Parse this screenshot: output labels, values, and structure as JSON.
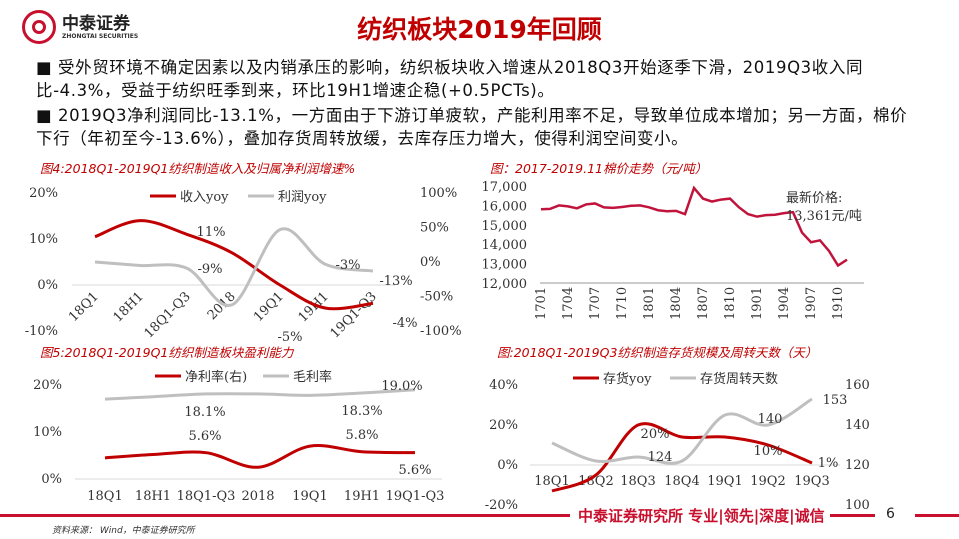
{
  "header": {
    "logo_cn": "中泰证券",
    "logo_en": "ZHONGTAI SECURITIES",
    "title": "纺织板块2019年回顾"
  },
  "bullets": [
    {
      "marker": "■",
      "text": "受外贸环境不确定因素以及内销承压的影响，纺织板块收入增速从2018Q3开始逐季下滑，2019Q3收入同比-4.3%，受益于纺织旺季到来，环比19H1增速企稳(+0.5PCTs)。"
    },
    {
      "marker": "■",
      "text": "2019Q3净利润同比-13.1%，一方面由于下游订单疲软，产能利用率不足，导致单位成本增加；另一方面，棉价下行（年初至今-13.6%），叠加存货周转放缓，去库存压力增大，使得利润空间变小。"
    }
  ],
  "chart_data": [
    {
      "type": "line",
      "title": "图4:2018Q1-2019Q1纺织制造收入及归属净利润增速%",
      "categories": [
        "18Q1",
        "18H1",
        "18Q1-Q3",
        "2018",
        "19Q1",
        "19H1",
        "19Q1-Q3"
      ],
      "y_ticks": [
        "20%",
        "10%",
        "0%",
        "-10%"
      ],
      "y2_ticks": [
        "100%",
        "50%",
        "0%",
        "-50%",
        "-100%"
      ],
      "ylim": [
        -10,
        20
      ],
      "y2lim": [
        -100,
        100
      ],
      "legend": "top",
      "series": [
        {
          "name": "收入yoy",
          "axis": "left",
          "color": "#c00000",
          "values": [
            10.5,
            14,
            11,
            7,
            0,
            -5,
            -4
          ],
          "labels": {
            "2": "11%",
            "5": "-5%",
            "6": "-4%"
          }
        },
        {
          "name": "利润yoy",
          "axis": "right",
          "color": "#bfbfbf",
          "values": [
            0,
            -5,
            -9,
            -62,
            47,
            -3,
            -13
          ],
          "labels": {
            "2": "-9%",
            "5": "-3%",
            "6": "-13%"
          }
        }
      ]
    },
    {
      "type": "line",
      "title": "图：2017-2019.11棉价走势（元/吨）",
      "x_ticks": [
        "1701",
        "1704",
        "1707",
        "1710",
        "1801",
        "1804",
        "1807",
        "1810",
        "1901",
        "1904",
        "1907",
        "1910"
      ],
      "y_ticks": [
        "17,000",
        "16,000",
        "15,000",
        "14,000",
        "13,000",
        "12,000"
      ],
      "ylim": [
        12000,
        17000
      ],
      "annotation": [
        "最新价格:",
        "13,361元/吨"
      ],
      "series": [
        {
          "color": "#c0143c",
          "x": [
            "1701",
            "1702",
            "1703",
            "1704",
            "1705",
            "1706",
            "1707",
            "1708",
            "1709",
            "1710",
            "1711",
            "1712",
            "1801",
            "1802",
            "1803",
            "1804",
            "1805",
            "1806",
            "1807",
            "1808",
            "1809",
            "1810",
            "1811",
            "1812",
            "1901",
            "1902",
            "1903",
            "1904",
            "1905",
            "1906",
            "1907",
            "1908",
            "1909",
            "1910",
            "1911"
          ],
          "values": [
            15800,
            15820,
            16000,
            15950,
            15850,
            16050,
            16100,
            15900,
            15870,
            15920,
            15980,
            16000,
            15900,
            15750,
            15700,
            15720,
            15550,
            16900,
            16350,
            16200,
            16300,
            16350,
            15900,
            15550,
            15420,
            15500,
            15520,
            15600,
            15650,
            14600,
            14100,
            14200,
            13650,
            12900,
            13200
          ]
        }
      ]
    },
    {
      "type": "line",
      "title": "图5:2018Q1-2019Q1纺织制造板块盈利能力",
      "categories": [
        "18Q1",
        "18H1",
        "18Q1-Q3",
        "2018",
        "19Q1",
        "19H1",
        "19Q1-Q3"
      ],
      "y_ticks": [
        "20%",
        "10%",
        "0%"
      ],
      "ylim": [
        0,
        20
      ],
      "legend": "top",
      "series": [
        {
          "name": "净利率(右)",
          "color": "#c00000",
          "values": [
            4.5,
            5.2,
            5.6,
            2.5,
            7.0,
            5.8,
            5.6
          ],
          "labels": {
            "2": "5.6%",
            "5": "5.8%",
            "6": "5.6%"
          }
        },
        {
          "name": "毛利率",
          "color": "#bfbfbf",
          "values": [
            17.0,
            17.5,
            18.1,
            18.1,
            17.8,
            18.3,
            19.0
          ],
          "labels": {
            "2": "18.1%",
            "5": "18.3%",
            "6": "19.0%"
          }
        }
      ]
    },
    {
      "type": "line",
      "title": "图:2018Q1-2019Q3纺织制造存货规模及周转天数（天）",
      "categories": [
        "18Q1",
        "18Q2",
        "18Q3",
        "18Q4",
        "19Q1",
        "19Q2",
        "19Q3"
      ],
      "y_ticks": [
        "40%",
        "20%",
        "0%",
        "-20%"
      ],
      "y2_ticks": [
        "160",
        "140",
        "120",
        "100"
      ],
      "ylim": [
        -20,
        40
      ],
      "y2lim": [
        100,
        160
      ],
      "legend": "top",
      "series": [
        {
          "name": "存货yoy",
          "axis": "left",
          "color": "#c00000",
          "values": [
            -13,
            -5,
            20,
            14,
            14,
            10,
            1
          ],
          "labels": {
            "2": "20%",
            "5": "10%",
            "6": "1%"
          }
        },
        {
          "name": "存货周转天数",
          "axis": "right",
          "color": "#bfbfbf",
          "values": [
            131,
            122,
            124,
            122,
            145,
            140,
            153
          ],
          "labels": {
            "2": "124",
            "5": "140",
            "6": "153"
          }
        }
      ]
    }
  ],
  "footer": {
    "source": "资料来源： Wind，中泰证券研究所",
    "brand": "中泰证券研究所 专业|领先|深度|诚信",
    "page": "6"
  }
}
